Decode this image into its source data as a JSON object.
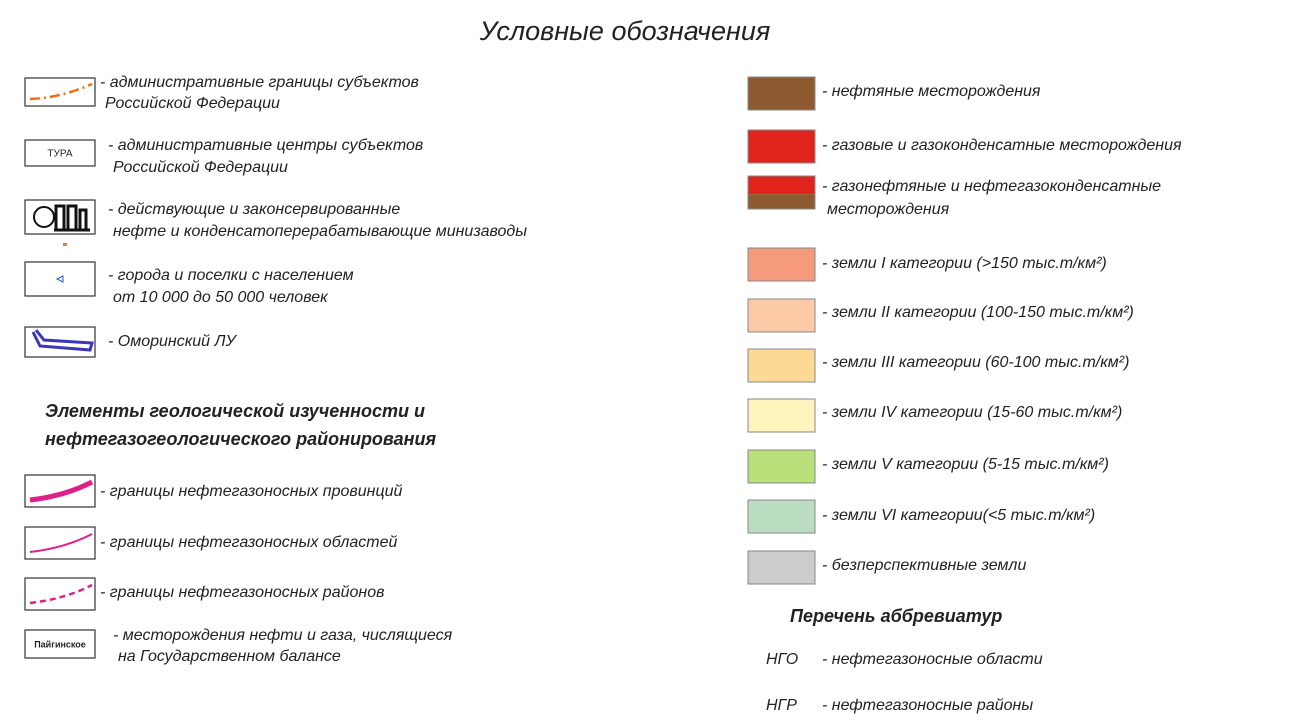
{
  "title": "Условные обозначения",
  "left_items": [
    {
      "lines": [
        "- административные границы субъектов",
        "Российской Федерации"
      ]
    },
    {
      "icon_label": "ТУРА",
      "lines": [
        "- административные центры субъектов",
        "Российской Федерации"
      ]
    },
    {
      "lines": [
        "- действующие и законсервированные",
        "нефте и конденсатоперерабатывающие минизаводы"
      ]
    },
    {
      "lines": [
        "- города и поселки с населением",
        "от 10 000 до 50 000 человек"
      ]
    },
    {
      "lines": [
        "- Оморинский ЛУ"
      ]
    }
  ],
  "section_heading": [
    "Элементы геологической изученности и",
    "нефтегазогеологического районирования"
  ],
  "section_items": [
    {
      "lines": [
        "- границы нефтегазоносных провинций"
      ]
    },
    {
      "lines": [
        "- границы нефтегазоносных областей"
      ]
    },
    {
      "lines": [
        "- границы нефтегазоносных районов"
      ]
    },
    {
      "icon_label": "Пайгинское",
      "lines": [
        "- месторождения нефти и газа, числящиеся",
        "на Государственном балансе"
      ]
    }
  ],
  "right_items": [
    {
      "color": "#8c5a2e",
      "lines": [
        "- нефтяные месторождения"
      ]
    },
    {
      "color": "#e0241c",
      "lines": [
        "- газовые и газоконденсатные месторождения"
      ]
    },
    {
      "color": [
        "#e0241c",
        "#8c5a2e"
      ],
      "lines": [
        "- газонефтяные и нефтегазоконденсатные",
        "месторождения"
      ]
    },
    {
      "color": "#f59a7a",
      "lines": [
        "- земли I категории (>150 тыс.т/км²)"
      ]
    },
    {
      "color": "#fccaa6",
      "lines": [
        "- земли II категории (100-150 тыс.т/км²)"
      ]
    },
    {
      "color": "#fcd995",
      "lines": [
        "- земли III категории (60-100 тыс.т/км²)"
      ]
    },
    {
      "color": "#fef4be",
      "lines": [
        "- земли IV категории (15-60 тыс.т/км²)"
      ]
    },
    {
      "color": "#b9e07a",
      "lines": [
        "- земли V категории (5-15 тыс.т/км²)"
      ]
    },
    {
      "color": "#badcc0",
      "lines": [
        "- земли VI категории(<5 тыс.т/км²)"
      ]
    },
    {
      "color": "#cccccc",
      "lines": [
        "- безперспективные земли"
      ]
    }
  ],
  "abbreviations_heading": "Перечень аббревиатур",
  "abbreviations": [
    {
      "abbr": "НГО",
      "text": "- нефтегазоносные области"
    },
    {
      "abbr": "НГР",
      "text": "- нефтегазоносные районы"
    }
  ]
}
